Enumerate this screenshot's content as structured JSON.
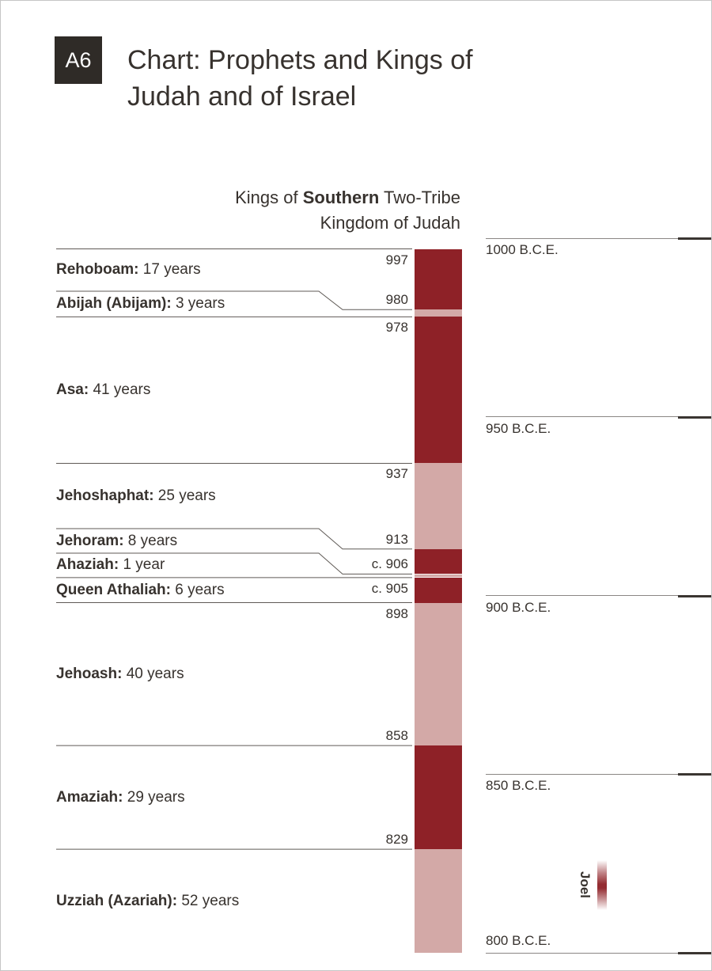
{
  "header": {
    "badge": "A6",
    "title_lines": [
      "Chart: Prophets and Kings of",
      "Judah and of Israel"
    ]
  },
  "chart_data": {
    "type": "timeline-bar",
    "title": {
      "line1_prefix": "Kings of ",
      "line1_bold": "Southern",
      "line1_suffix": " Two-Tribe",
      "line2": "Kingdom of Judah"
    },
    "axis": {
      "unit": "B.C.E.",
      "orientation": "vertical-descending",
      "year_range": [
        1000,
        800
      ],
      "ticks": [
        {
          "label": "1000 B.C.E.",
          "year": 1000,
          "label_pos": "below"
        },
        {
          "label": "950 B.C.E.",
          "year": 950,
          "label_pos": "below"
        },
        {
          "label": "900 B.C.E.",
          "year": 900,
          "label_pos": "below"
        },
        {
          "label": "850 B.C.E.",
          "year": 850,
          "label_pos": "below"
        },
        {
          "label": "800 B.C.E.",
          "year": 800,
          "label_pos": "above"
        }
      ]
    },
    "kings": [
      {
        "name": "Rehoboam",
        "reign": "17 years",
        "start_label": "997",
        "start_year": 997,
        "shade": "dark",
        "year_label_pos": "below"
      },
      {
        "name": "Abijah (Abijam)",
        "reign": "3 years",
        "start_label": "980",
        "start_year": 980,
        "shade": "light",
        "year_label_pos": "above"
      },
      {
        "name": "Asa",
        "reign": "41 years",
        "start_label": "978",
        "start_year": 978,
        "shade": "dark",
        "year_label_pos": "below"
      },
      {
        "name": "Jehoshaphat",
        "reign": "25 years",
        "start_label": "937",
        "start_year": 937,
        "shade": "light",
        "year_label_pos": "below"
      },
      {
        "name": "Jehoram",
        "reign": "8 years",
        "start_label": "913",
        "start_year": 913,
        "shade": "dark",
        "year_label_pos": "above"
      },
      {
        "name": "Ahaziah",
        "reign": "1 year",
        "start_label": "c. 906",
        "start_year": 906,
        "shade": "light",
        "year_label_pos": "above"
      },
      {
        "name": "Queen Athaliah",
        "reign": "6 years",
        "start_label": "c. 905",
        "start_year": 905,
        "shade": "dark",
        "year_label_pos": "below"
      },
      {
        "name": "Jehoash",
        "reign": "40 years",
        "start_label": "898",
        "start_year": 898,
        "shade": "light",
        "year_label_pos": "below"
      },
      {
        "name": "Amaziah",
        "reign": "29 years",
        "start_label": "858",
        "start_year": 858,
        "shade": "dark",
        "year_label_pos": "above"
      },
      {
        "name": "Uzziah (Azariah)",
        "reign": "52 years",
        "start_label": "829",
        "start_year": 829,
        "shade": "light",
        "year_label_pos": "above"
      }
    ],
    "prophets": [
      {
        "name": "Joel",
        "approx_year_span": [
          826,
          812
        ]
      }
    ]
  },
  "colors": {
    "dark_red": "#8e2127",
    "light_pink": "#d3a9a7",
    "badge_bg": "#2f2b27",
    "text": "#37322e",
    "separator_line": "#5f5a56",
    "timeline_line": "#8a8684",
    "timeline_tick": "#3a3531"
  }
}
